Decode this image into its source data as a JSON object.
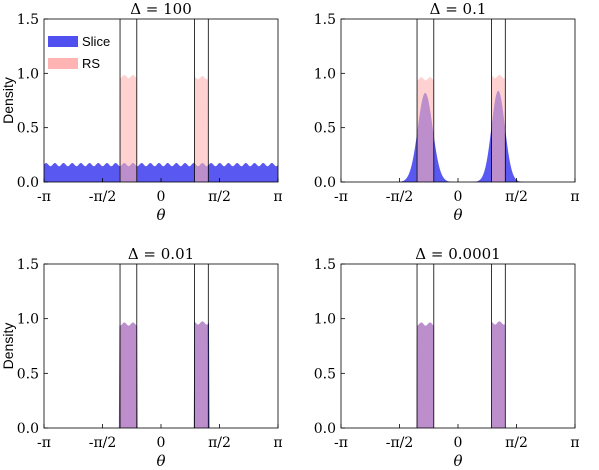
{
  "colors": {
    "slice": "#5050f0",
    "rs": "#ffb3b3",
    "overlap": "#b07ac8"
  },
  "legend": {
    "slice_label": "Slice",
    "rs_label": "RS"
  },
  "chart_data": [
    {
      "type": "area",
      "title": "Δ = 100",
      "ylabel": "Density",
      "xlabel": "θ",
      "xlim": [
        -3.1416,
        3.1416
      ],
      "ylim": [
        0,
        1.5
      ],
      "yticks": [
        "0.0",
        "0.5",
        "1.0",
        "1.5"
      ],
      "xticks": [
        "-π",
        "-π/2",
        "0",
        "π/2",
        "π"
      ],
      "vlines": [
        -1.1,
        -0.65,
        0.9,
        1.27
      ],
      "series": [
        {
          "name": "Slice",
          "kind": "flat",
          "from": -3.1416,
          "to": 3.1416,
          "height": 0.16
        },
        {
          "name": "RS",
          "kind": "bands",
          "bands": [
            [
              -1.1,
              -0.65,
              0.97
            ],
            [
              0.9,
              1.27,
              0.96
            ]
          ]
        }
      ]
    },
    {
      "type": "area",
      "title": "Δ = 0.1",
      "ylabel": "",
      "xlabel": "θ",
      "xlim": [
        -3.1416,
        3.1416
      ],
      "ylim": [
        0,
        1.5
      ],
      "yticks": [
        "0.0",
        "0.5",
        "1.0",
        "1.5"
      ],
      "xticks": [
        "-π",
        "-π/2",
        "0",
        "π/2",
        "π"
      ],
      "vlines": [
        -1.1,
        -0.65,
        0.9,
        1.27
      ],
      "series": [
        {
          "name": "Slice",
          "kind": "gauss",
          "peaks": [
            [
              -0.88,
              0.82,
              0.2
            ],
            [
              1.08,
              0.84,
              0.18
            ]
          ]
        },
        {
          "name": "RS",
          "kind": "bands",
          "bands": [
            [
              -1.1,
              -0.65,
              0.95
            ],
            [
              0.9,
              1.27,
              0.97
            ]
          ]
        }
      ]
    },
    {
      "type": "area",
      "title": "Δ = 0.01",
      "ylabel": "Density",
      "xlabel": "θ",
      "xlim": [
        -3.1416,
        3.1416
      ],
      "ylim": [
        0,
        1.5
      ],
      "yticks": [
        "0.0",
        "0.5",
        "1.0",
        "1.5"
      ],
      "xticks": [
        "-π",
        "-π/2",
        "0",
        "π/2",
        "π"
      ],
      "vlines": [
        -1.1,
        -0.65,
        0.9,
        1.27
      ],
      "series": [
        {
          "name": "Slice",
          "kind": "bands",
          "bands": [
            [
              -1.12,
              -0.63,
              0.95
            ],
            [
              0.88,
              1.29,
              0.96
            ]
          ]
        },
        {
          "name": "RS",
          "kind": "bands",
          "bands": [
            [
              -1.1,
              -0.65,
              0.95
            ],
            [
              0.9,
              1.27,
              0.96
            ]
          ]
        }
      ]
    },
    {
      "type": "area",
      "title": "Δ = 0.0001",
      "ylabel": "",
      "xlabel": "θ",
      "xlim": [
        -3.1416,
        3.1416
      ],
      "ylim": [
        0,
        1.5
      ],
      "yticks": [
        "0.0",
        "0.5",
        "1.0",
        "1.5"
      ],
      "xticks": [
        "-π",
        "-π/2",
        "0",
        "π/2",
        "π"
      ],
      "vlines": [
        -1.1,
        -0.65,
        0.9,
        1.27
      ],
      "series": [
        {
          "name": "Slice",
          "kind": "bands",
          "bands": [
            [
              -1.1,
              -0.65,
              0.95
            ],
            [
              0.9,
              1.27,
              0.96
            ]
          ]
        },
        {
          "name": "RS",
          "kind": "bands",
          "bands": [
            [
              -1.1,
              -0.65,
              0.95
            ],
            [
              0.9,
              1.27,
              0.96
            ]
          ]
        }
      ]
    }
  ]
}
